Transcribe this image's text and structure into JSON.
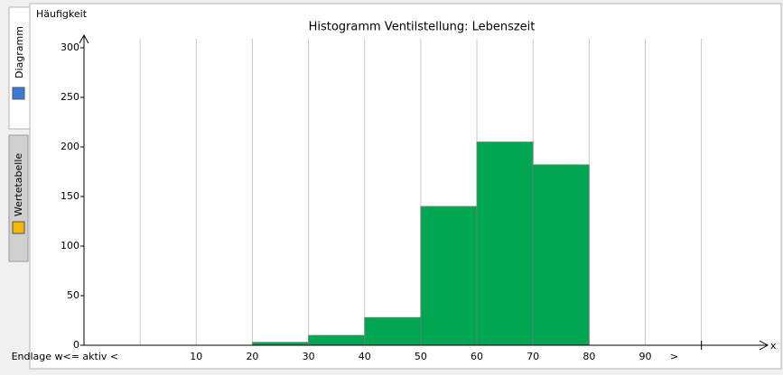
{
  "tabs": [
    "Diagramm",
    "Wertetabelle"
  ],
  "chart_data": {
    "type": "histogram",
    "title": "Histogramm Ventilstellung: Lebenszeit",
    "y_label": "Häufigkeit",
    "x_label": "x",
    "bins": [
      20,
      30,
      40,
      50,
      60,
      70,
      80
    ],
    "counts": [
      3,
      10,
      28,
      140,
      205,
      182
    ],
    "color": "#00a651",
    "xlim": [
      -10,
      111
    ],
    "ylim": [
      0,
      300
    ],
    "xticks": [
      {
        "value": 0,
        "label": "Endlage w<= aktiv <"
      },
      10,
      20,
      30,
      40,
      50,
      60,
      70,
      80,
      90,
      {
        "value": 100,
        "label": ">"
      }
    ],
    "yticks": [
      0,
      50,
      100,
      150,
      200,
      250,
      300
    ],
    "grid": true
  }
}
